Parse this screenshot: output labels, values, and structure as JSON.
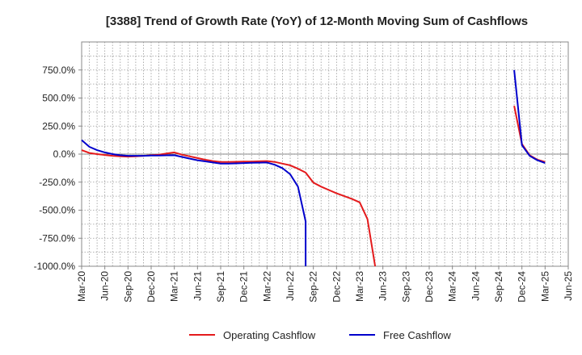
{
  "chart_data": {
    "type": "line",
    "title": "[3388]  Trend of Growth Rate (YoY) of 12-Month Moving Sum of Cashflows",
    "xlabel": "",
    "ylabel": "",
    "x": [
      "Mar-20",
      "Apr-20",
      "May-20",
      "Jun-20",
      "Jul-20",
      "Aug-20",
      "Sep-20",
      "Oct-20",
      "Nov-20",
      "Dec-20",
      "Jan-21",
      "Feb-21",
      "Mar-21",
      "Apr-21",
      "May-21",
      "Jun-21",
      "Jul-21",
      "Aug-21",
      "Sep-21",
      "Oct-21",
      "Nov-21",
      "Dec-21",
      "Jan-22",
      "Feb-22",
      "Mar-22",
      "Apr-22",
      "May-22",
      "Jun-22",
      "Jul-22",
      "Aug-22",
      "Sep-22",
      "Oct-22",
      "Nov-22",
      "Dec-22",
      "Jan-23",
      "Feb-23",
      "Mar-23",
      "Apr-23",
      "May-23",
      "Jun-23",
      "Jul-23",
      "Aug-23",
      "Sep-23",
      "Oct-23",
      "Nov-23",
      "Dec-23",
      "Jan-24",
      "Feb-24",
      "Mar-24",
      "Apr-24",
      "May-24",
      "Jun-24",
      "Jul-24",
      "Aug-24",
      "Sep-24",
      "Oct-24",
      "Nov-24",
      "Dec-24",
      "Jan-25",
      "Feb-25",
      "Mar-25",
      "Apr-25",
      "May-25",
      "Jun-25"
    ],
    "x_tick_labels": [
      "Mar-20",
      "Jun-20",
      "Sep-20",
      "Dec-20",
      "Mar-21",
      "Jun-21",
      "Sep-21",
      "Dec-21",
      "Mar-22",
      "Jun-22",
      "Sep-22",
      "Dec-22",
      "Mar-23",
      "Jun-23",
      "Sep-23",
      "Dec-23",
      "Mar-24",
      "Jun-24",
      "Sep-24",
      "Dec-24",
      "Mar-25",
      "Jun-25"
    ],
    "y_tick_labels": [
      "-1000.0%",
      "-750.0%",
      "-500.0%",
      "-250.0%",
      "0.0%",
      "250.0%",
      "500.0%",
      "750.0%"
    ],
    "y_ticks": [
      -1000,
      -750,
      -500,
      -250,
      0,
      250,
      500,
      750
    ],
    "ylim": [
      -1000,
      1000
    ],
    "grid": true,
    "legend_position": "bottom",
    "series": [
      {
        "name": "Operating Cashflow",
        "color": "#e41a1c",
        "points": [
          [
            "Mar-20",
            35
          ],
          [
            "Apr-20",
            10
          ],
          [
            "May-20",
            0
          ],
          [
            "Jun-20",
            -8
          ],
          [
            "Jul-20",
            -15
          ],
          [
            "Aug-20",
            -20
          ],
          [
            "Sep-20",
            -22
          ],
          [
            "Oct-20",
            -20
          ],
          [
            "Nov-20",
            -15
          ],
          [
            "Dec-20",
            -10
          ],
          [
            "Jan-21",
            -5
          ],
          [
            "Feb-21",
            5
          ],
          [
            "Mar-21",
            15
          ],
          [
            "Apr-21",
            -5
          ],
          [
            "May-21",
            -20
          ],
          [
            "Jun-21",
            -35
          ],
          [
            "Jul-21",
            -50
          ],
          [
            "Aug-21",
            -62
          ],
          [
            "Sep-21",
            -70
          ],
          [
            "Oct-21",
            -70
          ],
          [
            "Nov-21",
            -68
          ],
          [
            "Dec-21",
            -67
          ],
          [
            "Jan-22",
            -66
          ],
          [
            "Feb-22",
            -64
          ],
          [
            "Mar-22",
            -62
          ],
          [
            "Apr-22",
            -70
          ],
          [
            "May-22",
            -85
          ],
          [
            "Jun-22",
            -100
          ],
          [
            "Jul-22",
            -130
          ],
          [
            "Aug-22",
            -165
          ],
          [
            "Sep-22",
            -255
          ],
          [
            "Oct-22",
            -290
          ],
          [
            "Nov-22",
            -320
          ],
          [
            "Dec-22",
            -350
          ],
          [
            "Jan-23",
            -375
          ],
          [
            "Feb-23",
            -400
          ],
          [
            "Mar-23",
            -430
          ],
          [
            "Apr-23",
            -580
          ],
          [
            "May-23",
            -1000
          ],
          [
            "Nov-24",
            430
          ],
          [
            "Dec-24",
            90
          ],
          [
            "Jan-25",
            -10
          ],
          [
            "Feb-25",
            -50
          ],
          [
            "Mar-25",
            -70
          ]
        ]
      },
      {
        "name": "Free Cashflow",
        "color": "#0000cc",
        "points": [
          [
            "Mar-20",
            125
          ],
          [
            "Apr-20",
            65
          ],
          [
            "May-20",
            35
          ],
          [
            "Jun-20",
            15
          ],
          [
            "Jul-20",
            0
          ],
          [
            "Aug-20",
            -10
          ],
          [
            "Sep-20",
            -15
          ],
          [
            "Oct-20",
            -15
          ],
          [
            "Nov-20",
            -15
          ],
          [
            "Dec-20",
            -13
          ],
          [
            "Jan-21",
            -12
          ],
          [
            "Feb-21",
            -11
          ],
          [
            "Mar-21",
            -10
          ],
          [
            "Apr-21",
            -25
          ],
          [
            "May-21",
            -40
          ],
          [
            "Jun-21",
            -55
          ],
          [
            "Jul-21",
            -65
          ],
          [
            "Aug-21",
            -75
          ],
          [
            "Sep-21",
            -85
          ],
          [
            "Oct-21",
            -85
          ],
          [
            "Nov-21",
            -83
          ],
          [
            "Dec-21",
            -80
          ],
          [
            "Jan-22",
            -78
          ],
          [
            "Feb-22",
            -76
          ],
          [
            "Mar-22",
            -75
          ],
          [
            "Apr-22",
            -95
          ],
          [
            "May-22",
            -125
          ],
          [
            "Jun-22",
            -180
          ],
          [
            "Jul-22",
            -290
          ],
          [
            "Aug-22",
            -600
          ],
          [
            "Aug-22",
            -1000
          ],
          [
            "Nov-24",
            750
          ],
          [
            "Dec-24",
            80
          ],
          [
            "Jan-25",
            -15
          ],
          [
            "Feb-25",
            -55
          ],
          [
            "Mar-25",
            -80
          ]
        ]
      }
    ]
  }
}
